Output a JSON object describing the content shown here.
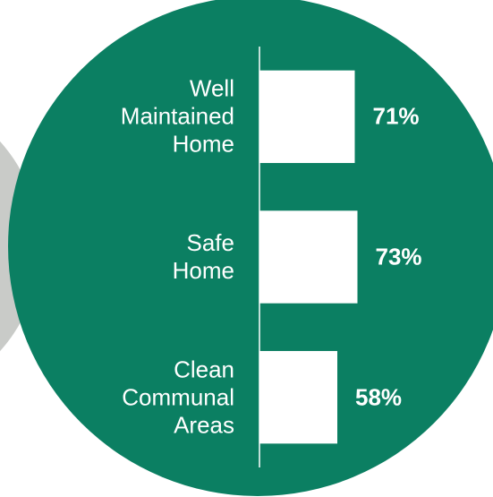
{
  "chart_data": {
    "type": "bar",
    "orientation": "horizontal",
    "categories": [
      "Well Maintained Home",
      "Safe Home",
      "Clean Communal Areas"
    ],
    "values": [
      71,
      73,
      58
    ],
    "value_labels": [
      "71%",
      "73%",
      "58%"
    ],
    "color": "#ffffff",
    "xlim": [
      0,
      100
    ]
  }
}
